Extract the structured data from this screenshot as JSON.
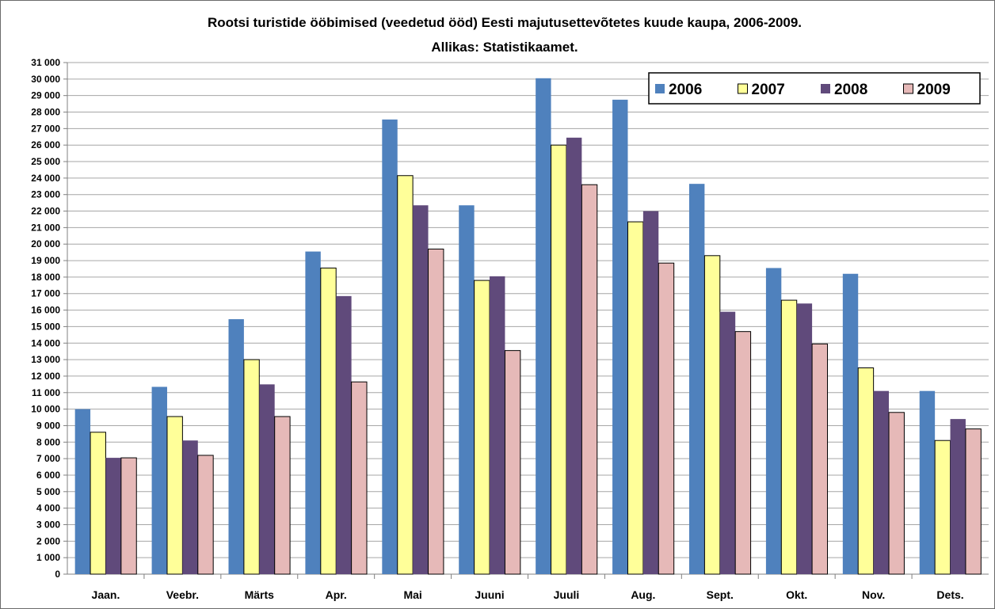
{
  "chart_data": {
    "type": "bar",
    "title": "Rootsi turistide ööbimised (veedetud ööd) Eesti majutusettevõtetes kuude kaupa, 2006-2009.",
    "subtitle": "Allikas: Statistikaamet.",
    "xlabel": "",
    "ylabel": "",
    "ylim": [
      0,
      31000
    ],
    "ytick_step": 1000,
    "grid": true,
    "legend_position": "top-right",
    "categories": [
      "Jaan.",
      "Veebr.",
      "Märts",
      "Apr.",
      "Mai",
      "Juuni",
      "Juuli",
      "Aug.",
      "Sept.",
      "Okt.",
      "Nov.",
      "Dets."
    ],
    "series": [
      {
        "name": "2006",
        "color": "#4f81bd",
        "values": [
          10000,
          11350,
          15450,
          19550,
          27550,
          22350,
          30050,
          28750,
          23650,
          18550,
          18200,
          11100
        ]
      },
      {
        "name": "2007",
        "color": "#ffff99",
        "values": [
          8600,
          9550,
          13000,
          18550,
          24150,
          17800,
          26000,
          21350,
          19300,
          16600,
          12500,
          8100
        ]
      },
      {
        "name": "2008",
        "color": "#604a7b",
        "values": [
          7050,
          8100,
          11500,
          16850,
          22350,
          18050,
          26450,
          22000,
          15900,
          16400,
          11100,
          9400
        ]
      },
      {
        "name": "2009",
        "color": "#e6b9b8",
        "values": [
          7050,
          7200,
          9550,
          11650,
          19700,
          13550,
          23600,
          18850,
          14700,
          13950,
          9800,
          8800
        ]
      }
    ]
  }
}
